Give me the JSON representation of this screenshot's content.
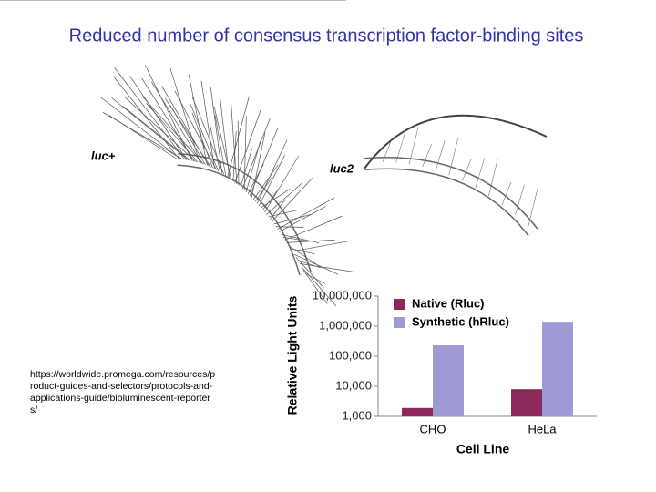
{
  "title": "Reduced number of consensus transcription factor-binding sites",
  "source_url": "https://worldwide.promega.com/resources/product-guides-and-selectors/protocols-and-applications-guide/bioluminescent-reporters/",
  "diagram": {
    "left_label": "luc+",
    "right_label": "luc2"
  },
  "chart_data": {
    "type": "bar",
    "categories": [
      "CHO",
      "HeLa"
    ],
    "series": [
      {
        "name": "Native (Rluc)",
        "color": "#8b2a5a",
        "values": [
          1900,
          8000
        ]
      },
      {
        "name": "Synthetic (hRluc)",
        "color": "#9d9ad6",
        "values": [
          230000,
          1400000
        ]
      }
    ],
    "ylabel": "Relative Light Units",
    "xlabel": "Cell Line",
    "log_y": true,
    "ylim": [
      1000,
      10000000
    ],
    "yticks": [
      {
        "value": 1000,
        "label": "1,000"
      },
      {
        "value": 10000,
        "label": "10,000"
      },
      {
        "value": 100000,
        "label": "100,000"
      },
      {
        "value": 1000000,
        "label": "1,000,000"
      },
      {
        "value": 10000000,
        "label": "10,000,000"
      }
    ],
    "legend": "top-left"
  }
}
